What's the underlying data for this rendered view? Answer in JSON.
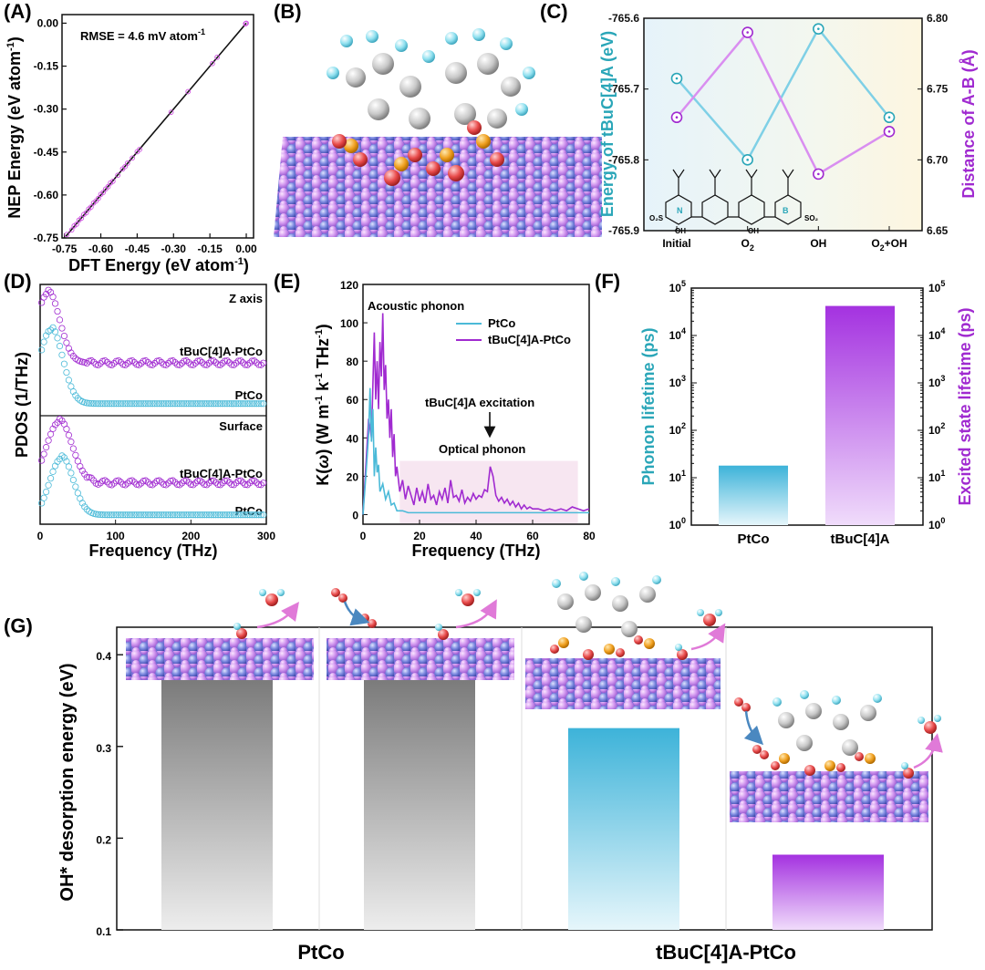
{
  "panel_labels": {
    "a": "(A)",
    "b": "(B)",
    "c": "(C)",
    "d": "(D)",
    "e": "(E)",
    "f": "(F)",
    "g": "(G)"
  },
  "colors": {
    "pink": "#cf4fe0",
    "cyan": "#4bbad8",
    "purple": "#a02ad0",
    "teal": "#2aa6b8",
    "surface_purple": "#b48ae8",
    "surface_blue": "#4a5cc8",
    "gray": "#888888",
    "oxygen": "#e24a4a",
    "hydrogen": "#8fe0ef",
    "sulfur": "#f0a020",
    "carbon": "#c8c8c8"
  },
  "chart_data": [
    {
      "id": "A",
      "type": "scatter",
      "annotation_prefix": "RMSE = 4.6 mV atom",
      "annotation_sup": "-1",
      "xlabel": "DFT Energy (eV atom",
      "xlabel_sup": "-1",
      "xlabel_end": ")",
      "ylabel": "NEP Energy (eV atom",
      "ylabel_sup": "-1",
      "ylabel_end": ")",
      "xlim": [
        -0.76,
        0.03
      ],
      "ylim": [
        -0.75,
        0.03
      ],
      "xticks": [
        "-0.75",
        "-0.60",
        "-0.45",
        "-0.30",
        "-0.15",
        "0.00"
      ],
      "yticks": [
        "-0.75",
        "-0.60",
        "-0.45",
        "-0.30",
        "-0.15",
        "0.00"
      ],
      "points": [
        [
          -0.74,
          -0.738
        ],
        [
          -0.72,
          -0.722
        ],
        [
          -0.71,
          -0.708
        ],
        [
          -0.7,
          -0.702
        ],
        [
          -0.69,
          -0.688
        ],
        [
          -0.68,
          -0.681
        ],
        [
          -0.67,
          -0.668
        ],
        [
          -0.66,
          -0.662
        ],
        [
          -0.65,
          -0.649
        ],
        [
          -0.64,
          -0.642
        ],
        [
          -0.63,
          -0.628
        ],
        [
          -0.62,
          -0.621
        ],
        [
          -0.61,
          -0.612
        ],
        [
          -0.6,
          -0.598
        ],
        [
          -0.59,
          -0.591
        ],
        [
          -0.58,
          -0.579
        ],
        [
          -0.57,
          -0.571
        ],
        [
          -0.56,
          -0.558
        ],
        [
          -0.55,
          -0.552
        ],
        [
          -0.53,
          -0.531
        ],
        [
          -0.51,
          -0.509
        ],
        [
          -0.5,
          -0.501
        ],
        [
          -0.49,
          -0.489
        ],
        [
          -0.47,
          -0.471
        ],
        [
          -0.45,
          -0.449
        ],
        [
          -0.44,
          -0.441
        ],
        [
          -0.31,
          -0.311
        ],
        [
          -0.24,
          -0.239
        ],
        [
          -0.14,
          -0.141
        ],
        [
          -0.12,
          -0.119
        ],
        [
          0.0,
          0.0
        ],
        [
          -0.003,
          -0.002
        ]
      ]
    },
    {
      "id": "C",
      "type": "line",
      "categories": [
        "Initial",
        "O",
        "OH",
        "O+OH"
      ],
      "category_subs": [
        "",
        "2",
        "",
        "2"
      ],
      "category_tails": [
        "",
        "",
        "",
        "+OH"
      ],
      "category_heads": [
        "Initial",
        "O",
        "OH",
        "O"
      ],
      "left_ylabel": "Energy of tBuC[4]A (eV)",
      "right_ylabel": "Distance of A-B (Å)",
      "left_ylim": [
        -765.9,
        -765.6
      ],
      "right_ylim": [
        6.65,
        6.8
      ],
      "left_yticks": [
        "-765.6",
        "-765.7",
        "-765.8",
        "-765.9"
      ],
      "right_yticks": [
        "6.80",
        "6.75",
        "6.70",
        "6.65"
      ],
      "series": [
        {
          "name": "Energy",
          "axis": "left",
          "values": [
            -765.685,
            -765.8,
            -765.615,
            -765.74
          ]
        },
        {
          "name": "Distance",
          "axis": "right",
          "values": [
            6.73,
            6.79,
            6.69,
            6.72
          ]
        }
      ],
      "molecule_labels": {
        "s1": "O₂S",
        "n": "N",
        "oh": "OH",
        "s2": "SO₂",
        "b": "B"
      }
    },
    {
      "id": "D",
      "type": "line",
      "ylabel": "PDOS (1/THz)",
      "xlabel": "Frequency (THz)",
      "xlim": [
        0,
        300
      ],
      "xticks": [
        "0",
        "100",
        "200",
        "300"
      ],
      "panels": [
        {
          "title": "Z axis",
          "labels": [
            "tBuC[4]A-PtCo",
            "PtCo"
          ]
        },
        {
          "title": "Surface",
          "labels": [
            "tBuC[4]A-PtCo",
            "PtCo"
          ]
        }
      ]
    },
    {
      "id": "E",
      "type": "line",
      "ylabel_main": "K(",
      "ylabel_omega": "ω",
      "ylabel_rest": ") (W m",
      "ylabel_sup1": "-1",
      "ylabel_mid": " k",
      "ylabel_sup2": "-1",
      "ylabel_mid2": " THz",
      "ylabel_sup3": "-1",
      "ylabel_end": ")",
      "xlabel": "Frequency (THz)",
      "xlim": [
        0,
        80
      ],
      "ylim": [
        -5,
        120
      ],
      "xticks": [
        "0",
        "20",
        "40",
        "60",
        "80"
      ],
      "yticks": [
        "0",
        "20",
        "40",
        "60",
        "80",
        "100",
        "120"
      ],
      "legend": [
        "PtCo",
        "tBuC[4]A-PtCo"
      ],
      "annotations": {
        "acoustic": "Acoustic phonon",
        "excitation": "tBuC[4]A excitation",
        "optical": "Optical phonon"
      },
      "highlight_range": [
        13,
        76
      ],
      "series": [
        {
          "name": "PtCo",
          "x": [
            0,
            1,
            2,
            2.5,
            3,
            3.5,
            4,
            4.5,
            5,
            5.5,
            6,
            7,
            8,
            9,
            10,
            11,
            12,
            14,
            16,
            20,
            30,
            40,
            50,
            60,
            70,
            80
          ],
          "values": [
            0,
            20,
            42,
            66,
            38,
            55,
            20,
            35,
            22,
            26,
            12,
            16,
            8,
            12,
            5,
            6,
            2,
            2,
            1,
            1,
            1,
            1,
            1,
            1,
            1,
            1
          ]
        },
        {
          "name": "tBuC[4]A-PtCo",
          "x": [
            0,
            1,
            2,
            3,
            4,
            4.5,
            5,
            5.5,
            6,
            6.5,
            7,
            7.5,
            8,
            8.5,
            9,
            9.5,
            10,
            10.5,
            11,
            11.5,
            12,
            13,
            14,
            15,
            16,
            17,
            18,
            19,
            20,
            21,
            22,
            23,
            24,
            25,
            26,
            27,
            28,
            29,
            30,
            31,
            32,
            33,
            34,
            35,
            36,
            37,
            38,
            39,
            40,
            41,
            42,
            43,
            44,
            45,
            46,
            47,
            48,
            49,
            50,
            51,
            52,
            53,
            54,
            55,
            56,
            57,
            58,
            59,
            60,
            62,
            64,
            66,
            68,
            70,
            72,
            74,
            76,
            78,
            80
          ],
          "values": [
            0,
            25,
            50,
            40,
            95,
            60,
            80,
            55,
            90,
            72,
            105,
            65,
            78,
            50,
            60,
            40,
            55,
            30,
            42,
            20,
            25,
            12,
            18,
            8,
            15,
            10,
            5,
            14,
            7,
            12,
            6,
            16,
            8,
            10,
            5,
            12,
            8,
            14,
            6,
            18,
            9,
            10,
            7,
            13,
            6,
            9,
            7,
            11,
            8,
            10,
            9,
            13,
            12,
            25,
            20,
            10,
            7,
            9,
            6,
            8,
            5,
            7,
            4,
            6,
            3,
            5,
            3,
            4,
            3,
            3,
            2,
            3,
            2,
            3,
            2,
            4,
            3,
            2,
            3
          ]
        }
      ]
    },
    {
      "id": "F",
      "type": "bar",
      "categories": [
        "PtCo",
        "tBuC[4]A"
      ],
      "values": [
        18,
        42000
      ],
      "left_ylabel": "Phonon lifetime (ps)",
      "right_ylabel": "Excited state lifetime (ps)",
      "ylog": true,
      "ylim_exp": [
        0,
        5
      ],
      "ytick_base": "10",
      "ytick_exps": [
        "0",
        "1",
        "2",
        "3",
        "4",
        "5"
      ]
    },
    {
      "id": "G",
      "type": "bar",
      "categories": [
        "PtCo",
        "tBuC[4]A-PtCo"
      ],
      "bars": [
        0.375,
        0.375,
        0.32,
        0.182
      ],
      "bar_group": [
        "PtCo",
        "PtCo",
        "tBuC[4]A-PtCo",
        "tBuC[4]A-PtCo"
      ],
      "ylabel": "OH* desorption energy (eV)",
      "ylim": [
        0.1,
        0.43
      ],
      "yticks": [
        "0.1",
        "0.2",
        "0.3",
        "0.4"
      ]
    }
  ]
}
